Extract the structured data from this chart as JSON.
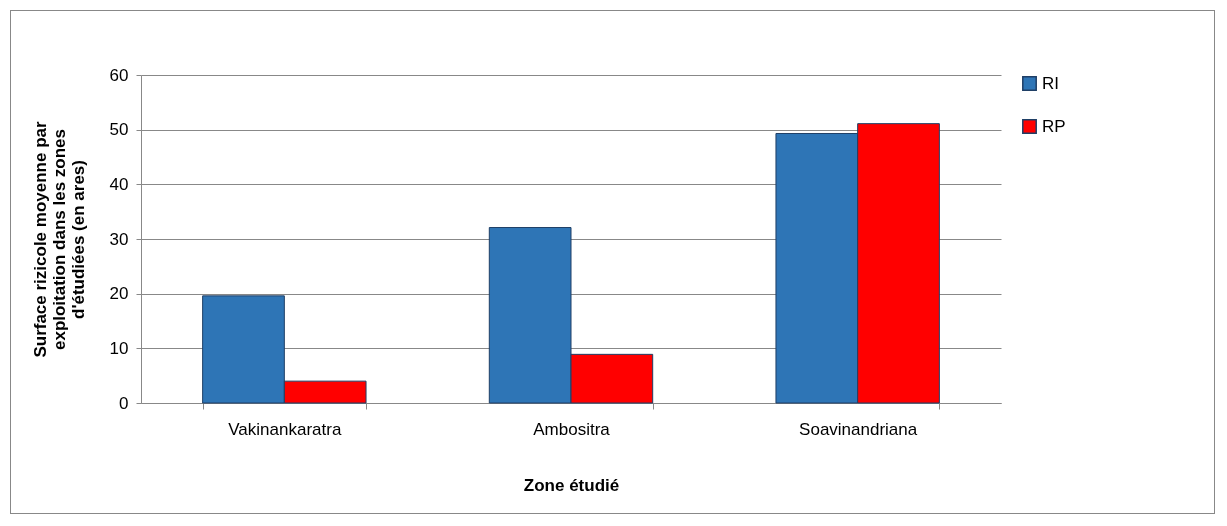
{
  "chart_data": {
    "type": "bar",
    "xlabel": "Zone étudié",
    "ylabel": "Surface rizicole moyenne par exploitation dans les zones d'étudiées (en ares)",
    "categories": [
      "Vakinankaratra",
      "Ambositra",
      "Soavinandriana"
    ],
    "series": [
      {
        "name": "RI",
        "color": "#2e75b6",
        "values": [
          19.6,
          32.1,
          49.3
        ]
      },
      {
        "name": "RP",
        "color": "#ff0000",
        "values": [
          4,
          8.9,
          51.1
        ]
      }
    ],
    "ylim": [
      0,
      60
    ],
    "yticks": [
      0,
      10,
      20,
      30,
      40,
      50,
      60
    ],
    "grid": "y",
    "legend": "right"
  }
}
